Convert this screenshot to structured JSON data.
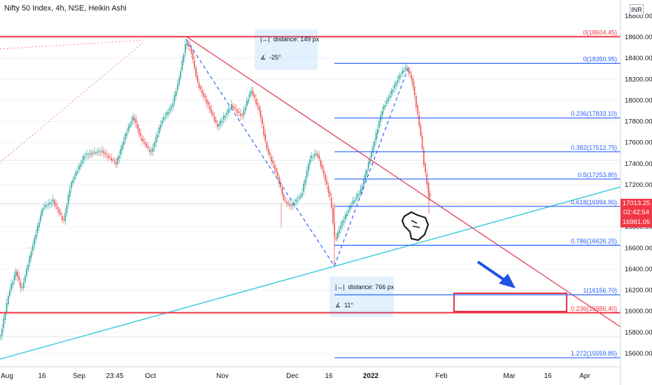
{
  "header": {
    "title": "Nifty 50 Index, 4h, NSE, Heikin Ashi",
    "currency": "INR"
  },
  "chart_data": {
    "type": "candlestick",
    "title": "Nifty 50 Index, 4h, NSE, Heikin Ashi",
    "y_ticks": [
      15600,
      15800,
      16000,
      16200,
      16400,
      16600,
      16800,
      17000,
      17200,
      17400,
      17600,
      17800,
      18000,
      18200,
      18400,
      18600,
      18800
    ],
    "y_tick_labels": [
      "15600.00",
      "15800.00",
      "16000.00",
      "16200.00",
      "16400.00",
      "16600.00",
      "16800.00",
      "17000.00",
      "17200.00",
      "17400.00",
      "17600.00",
      "17800.00",
      "18000.00",
      "18200.00",
      "18400.00",
      "18600.00",
      "18800.00"
    ],
    "ylim": [
      15500,
      18900
    ],
    "x_tick_labels": [
      "Aug",
      "16",
      "Sep",
      "23:45",
      "Oct",
      "Nov",
      "Dec",
      "16",
      "2022",
      "Feb",
      "Mar",
      "16",
      "Apr"
    ],
    "fib_levels": [
      {
        "label": "0(18604.45)",
        "value": 18604.45,
        "color": "#f23645"
      },
      {
        "label": "0(18350.95)",
        "value": 18350.95,
        "color": "#2962ff"
      },
      {
        "label": "0.236(17833.10)",
        "value": 17833.1,
        "color": "#2962ff"
      },
      {
        "label": "0.382(17512.75)",
        "value": 17512.75,
        "color": "#2962ff"
      },
      {
        "label": "0.5(17253.80)",
        "value": 17253.8,
        "color": "#2962ff"
      },
      {
        "label": "0.618(16994.90)",
        "value": 16994.9,
        "color": "#2962ff"
      },
      {
        "label": "0.786(16626.25)",
        "value": 16626.25,
        "color": "#2962ff"
      },
      {
        "label": "1(16156.70)",
        "value": 16156.7,
        "color": "#2962ff"
      },
      {
        "label": "0.236(15986.40)",
        "value": 15986.4,
        "color": "#f23645"
      },
      {
        "label": "1.272(15559.85)",
        "value": 15559.85,
        "color": "#2962ff"
      }
    ],
    "price_labels": [
      "17013.25",
      "02:42:54",
      "16981.05"
    ],
    "annotations": [
      {
        "distance": "distance: 149 px",
        "angle": "-25°"
      },
      {
        "distance": "distance: 766 px",
        "angle": "11°"
      }
    ],
    "colors": {
      "up": "#26a69a",
      "down": "#ef5350",
      "fib": "#2962ff",
      "resistance": "#f23645",
      "trend": "#00bcd4"
    }
  }
}
